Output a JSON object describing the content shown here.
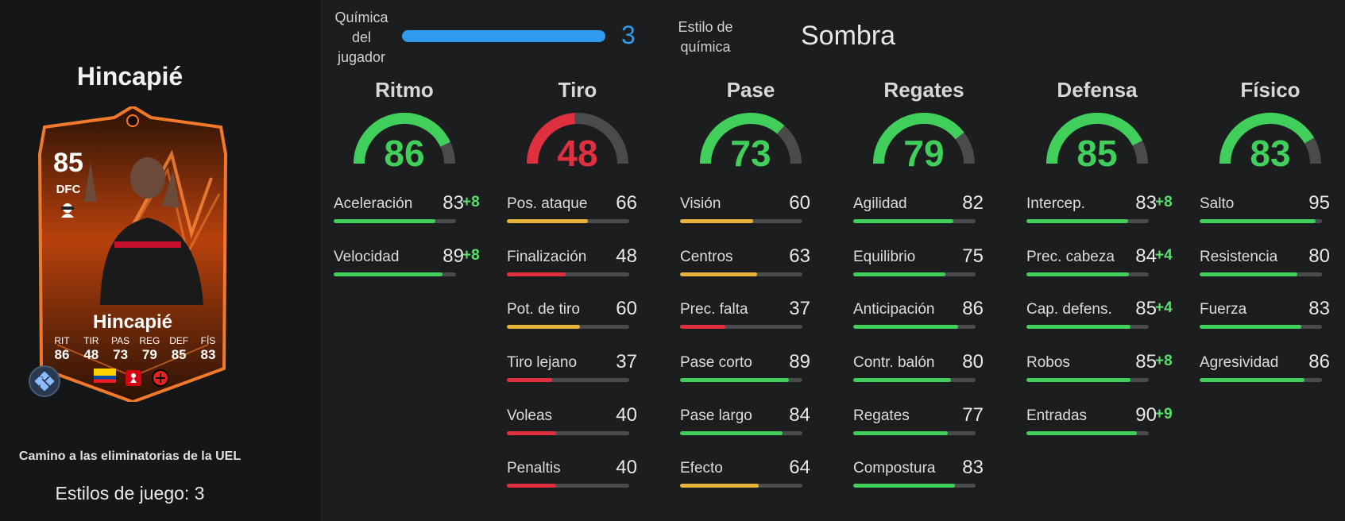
{
  "player": {
    "name": "Hincapié",
    "rating": "85",
    "position": "DFC",
    "card_stats": [
      {
        "label": "RIT",
        "value": "86"
      },
      {
        "label": "TIR",
        "value": "48"
      },
      {
        "label": "PAS",
        "value": "73"
      },
      {
        "label": "REG",
        "value": "79"
      },
      {
        "label": "DEF",
        "value": "85"
      },
      {
        "label": "FÍS",
        "value": "83"
      }
    ],
    "card_subtitle": "Camino a las eliminatorias de la UEL",
    "playstyles": "Estilos de juego: 3",
    "sponsor": "armenia"
  },
  "chemistry": {
    "label": "Química del jugador",
    "value": "3",
    "fill": 1.0,
    "style_label": "Estilo de química",
    "style_value": "Sombra"
  },
  "colors": {
    "green": "#3fcf5a",
    "yellow": "#e7b43b",
    "red": "#e0303f",
    "blue": "#2f9bf0",
    "boost": "#5ddf6b"
  },
  "categories": [
    {
      "title": "Ritmo",
      "value": "86",
      "attrs": [
        {
          "name": "Aceleración",
          "value": "83",
          "boost": "+8"
        },
        {
          "name": "Velocidad",
          "value": "89",
          "boost": "+8"
        }
      ]
    },
    {
      "title": "Tiro",
      "value": "48",
      "attrs": [
        {
          "name": "Pos. ataque",
          "value": "66",
          "boost": ""
        },
        {
          "name": "Finalización",
          "value": "48",
          "boost": ""
        },
        {
          "name": "Pot. de tiro",
          "value": "60",
          "boost": ""
        },
        {
          "name": "Tiro lejano",
          "value": "37",
          "boost": ""
        },
        {
          "name": "Voleas",
          "value": "40",
          "boost": ""
        },
        {
          "name": "Penaltis",
          "value": "40",
          "boost": ""
        }
      ]
    },
    {
      "title": "Pase",
      "value": "73",
      "attrs": [
        {
          "name": "Visión",
          "value": "60",
          "boost": ""
        },
        {
          "name": "Centros",
          "value": "63",
          "boost": ""
        },
        {
          "name": "Prec. falta",
          "value": "37",
          "boost": ""
        },
        {
          "name": "Pase corto",
          "value": "89",
          "boost": ""
        },
        {
          "name": "Pase largo",
          "value": "84",
          "boost": ""
        },
        {
          "name": "Efecto",
          "value": "64",
          "boost": ""
        }
      ]
    },
    {
      "title": "Regates",
      "value": "79",
      "attrs": [
        {
          "name": "Agilidad",
          "value": "82",
          "boost": ""
        },
        {
          "name": "Equilibrio",
          "value": "75",
          "boost": ""
        },
        {
          "name": "Anticipación",
          "value": "86",
          "boost": ""
        },
        {
          "name": "Contr. balón",
          "value": "80",
          "boost": ""
        },
        {
          "name": "Regates",
          "value": "77",
          "boost": ""
        },
        {
          "name": "Compostura",
          "value": "83",
          "boost": ""
        }
      ]
    },
    {
      "title": "Defensa",
      "value": "85",
      "attrs": [
        {
          "name": "Intercep.",
          "value": "83",
          "boost": "+8"
        },
        {
          "name": "Prec. cabeza",
          "value": "84",
          "boost": "+4"
        },
        {
          "name": "Cap. defens.",
          "value": "85",
          "boost": "+4"
        },
        {
          "name": "Robos",
          "value": "85",
          "boost": "+8"
        },
        {
          "name": "Entradas",
          "value": "90",
          "boost": "+9"
        }
      ]
    },
    {
      "title": "Físico",
      "value": "83",
      "attrs": [
        {
          "name": "Salto",
          "value": "95",
          "boost": ""
        },
        {
          "name": "Resistencia",
          "value": "80",
          "boost": ""
        },
        {
          "name": "Fuerza",
          "value": "83",
          "boost": ""
        },
        {
          "name": "Agresividad",
          "value": "86",
          "boost": ""
        }
      ]
    }
  ]
}
